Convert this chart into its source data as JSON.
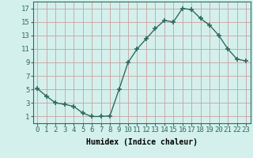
{
  "x": [
    0,
    1,
    2,
    3,
    4,
    5,
    6,
    7,
    8,
    9,
    10,
    11,
    12,
    13,
    14,
    15,
    16,
    17,
    18,
    19,
    20,
    21,
    22,
    23
  ],
  "y": [
    5.1,
    4.0,
    3.0,
    2.8,
    2.5,
    1.5,
    1.0,
    1.0,
    1.1,
    5.0,
    9.0,
    11.0,
    12.5,
    14.0,
    15.2,
    15.0,
    17.0,
    16.8,
    15.5,
    14.5,
    13.0,
    11.0,
    9.5,
    9.2
  ],
  "xlabel": "Humidex (Indice chaleur)",
  "ylim": [
    0,
    18
  ],
  "xlim": [
    -0.5,
    23.5
  ],
  "yticks": [
    1,
    3,
    5,
    7,
    9,
    11,
    13,
    15,
    17
  ],
  "xtick_labels": [
    "0",
    "1",
    "2",
    "3",
    "4",
    "5",
    "6",
    "7",
    "8",
    "9",
    "10",
    "11",
    "12",
    "13",
    "14",
    "15",
    "16",
    "17",
    "18",
    "19",
    "20",
    "21",
    "22",
    "23"
  ],
  "line_color": "#2e6b5e",
  "marker": "+",
  "marker_size": 5,
  "bg_color": "#d4f0ec",
  "grid_color": "#c8a0a0",
  "label_fontsize": 7,
  "tick_fontsize": 6.5
}
